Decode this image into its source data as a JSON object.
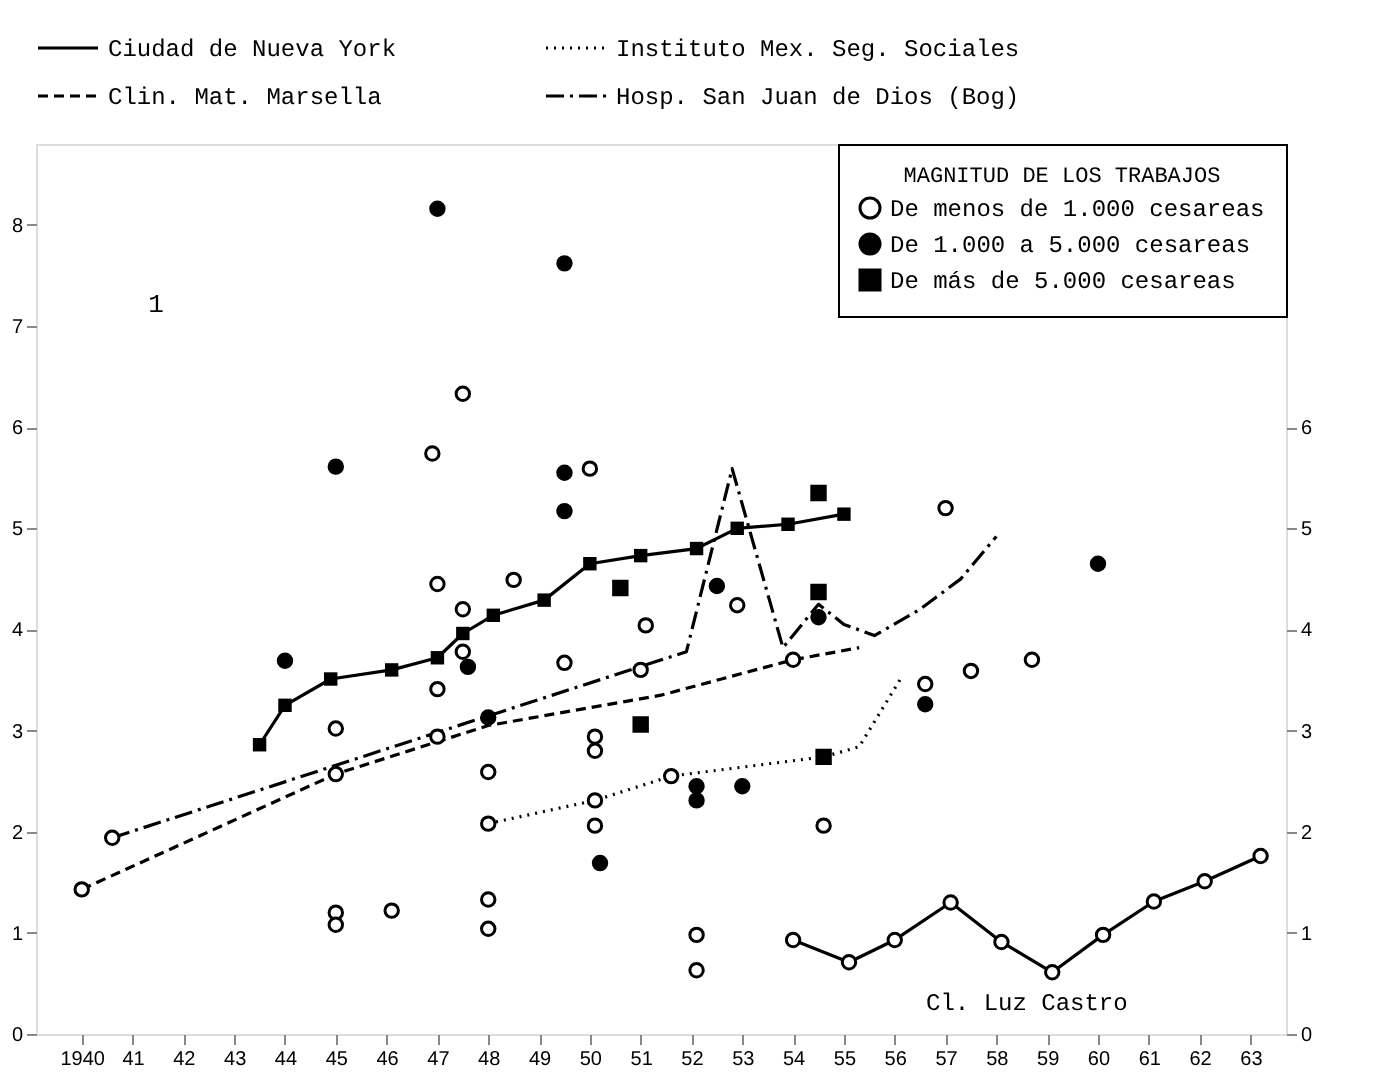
{
  "chart_data": {
    "type": "line",
    "xlim": [
      1939.1,
      1963.7
    ],
    "ylim": [
      0,
      8.8
    ],
    "yticks": [
      0,
      1,
      2,
      3,
      4,
      5,
      6,
      7,
      8
    ],
    "y2lim": [
      0,
      8.8
    ],
    "y2ticks": [
      0,
      1,
      2,
      3,
      4,
      5,
      6
    ],
    "xticks": [
      1940,
      {
        "value": 1941,
        "label": "41"
      },
      {
        "value": 1942,
        "label": "42"
      },
      {
        "value": 1943,
        "label": "43"
      },
      {
        "value": 1944,
        "label": "44"
      },
      {
        "value": 1945,
        "label": "45"
      },
      {
        "value": 1946,
        "label": "46"
      },
      {
        "value": 1947,
        "label": "47"
      },
      {
        "value": 1948,
        "label": "48"
      },
      {
        "value": 1949,
        "label": "49"
      },
      {
        "value": 1950,
        "label": "50"
      },
      {
        "value": 1951,
        "label": "51"
      },
      {
        "value": 1952,
        "label": "52"
      },
      {
        "value": 1953,
        "label": "53"
      },
      {
        "value": 1954,
        "label": "54"
      },
      {
        "value": 1955,
        "label": "55"
      },
      {
        "value": 1956,
        "label": "56"
      },
      {
        "value": 1957,
        "label": "57"
      },
      {
        "value": 1958,
        "label": "58"
      },
      {
        "value": 1959,
        "label": "59"
      },
      {
        "value": 1960,
        "label": "60"
      },
      {
        "value": 1961,
        "label": "61"
      },
      {
        "value": 1962,
        "label": "62"
      },
      {
        "value": 1963,
        "label": "63"
      }
    ],
    "grid": false,
    "legend": "top right",
    "legend_title": "MAGNITUD DE LOS TRABAJOS",
    "annotations": [
      "1",
      "Cl. Luz Castro"
    ],
    "series": [
      {
        "name": "Ciudad de Nueva York",
        "color": "#000000",
        "marker": "square",
        "line_style": "solid",
        "x": [
          1943.5,
          1944.0,
          1944.9,
          1946.1,
          1947.0,
          1947.5,
          1948.1,
          1949.1,
          1950.0,
          1951.0,
          1952.1,
          1952.9,
          1953.9,
          1955.0
        ],
        "values": [
          2.86,
          3.25,
          3.51,
          3.6,
          3.72,
          3.96,
          4.14,
          4.29,
          4.65,
          4.73,
          4.8,
          5.0,
          5.04,
          5.14
        ]
      },
      {
        "name": "Instituto Mex. Seg. Sociales",
        "color": "#000000",
        "marker": "none",
        "line_style": "dotted",
        "x": [
          1948.0,
          1950.1,
          1951.6,
          1954.6,
          1955.3,
          1956.1
        ],
        "values": [
          2.08,
          2.31,
          2.55,
          2.74,
          2.84,
          3.5
        ]
      },
      {
        "name": "Clin. Mat. Marsella",
        "color": "#000000",
        "marker": "none",
        "line_style": "dashed",
        "x": [
          1940.0,
          1945.0,
          1948.0,
          1951.4,
          1954.0,
          1955.3
        ],
        "values": [
          1.43,
          2.57,
          3.05,
          3.35,
          3.7,
          3.82
        ]
      },
      {
        "name": "Hosp. San Juan de Dios (Bog)",
        "color": "#000000",
        "marker": "none",
        "line_style": "dashdot",
        "x": [
          1940.6,
          1951.9,
          1952.8,
          1953.8,
          1954.5,
          1955.0,
          1955.6,
          1956.5,
          1957.3,
          1958.0
        ],
        "values": [
          1.94,
          3.78,
          5.59,
          3.82,
          4.25,
          4.05,
          3.94,
          4.2,
          4.5,
          4.92
        ]
      },
      {
        "color": "#000000",
        "marker": "circle",
        "line_style": "solid",
        "x": [
          1954.0,
          1955.1,
          1956.0,
          1957.1,
          1958.1,
          1959.1,
          1960.1,
          1961.1,
          1962.1,
          1963.2
        ],
        "values": [
          0.93,
          0.71,
          0.93,
          1.3,
          0.91,
          0.61,
          0.98,
          1.31,
          1.51,
          1.76
        ]
      },
      {
        "name": "De menos de 1.000 cesareas",
        "type": "scatter",
        "color": "#ffffff",
        "marker": "circle",
        "x": [
          1940.0,
          1940.6,
          1945.0,
          1945.0,
          1945.0,
          1945.0,
          1946.1,
          1946.9,
          1947.0,
          1947.0,
          1947.0,
          1947.5,
          1947.5,
          1947.5,
          1948.0,
          1948.0,
          1948.0,
          1948.0,
          1948.5,
          1949.5,
          1950.0,
          1950.1,
          1950.1,
          1950.1,
          1950.1,
          1951.0,
          1951.1,
          1951.6,
          1952.1,
          1952.1,
          1952.9,
          1954.0,
          1954.6,
          1956.6,
          1957.0,
          1957.5,
          1958.7
        ],
        "values": [
          1.43,
          1.94,
          3.02,
          2.57,
          1.2,
          1.08,
          1.22,
          5.74,
          4.45,
          3.41,
          2.94,
          6.33,
          4.2,
          3.78,
          2.59,
          2.08,
          1.33,
          1.04,
          4.49,
          3.67,
          5.59,
          2.94,
          2.8,
          2.31,
          2.06,
          3.6,
          4.04,
          2.55,
          0.98,
          0.63,
          4.24,
          3.7,
          2.06,
          3.46,
          5.2,
          3.59,
          3.7
        ]
      },
      {
        "name": "De 1.000 a  5.000 cesareas",
        "type": "scatter",
        "color": "#000000",
        "marker": "circle",
        "x": [
          1944.0,
          1945.0,
          1947.0,
          1947.6,
          1948.0,
          1949.5,
          1949.5,
          1949.5,
          1950.2,
          1952.1,
          1952.1,
          1952.5,
          1953.0,
          1954.5,
          1956.6,
          1960.0
        ],
        "values": [
          3.69,
          5.61,
          8.16,
          3.63,
          3.13,
          7.62,
          5.55,
          5.17,
          1.69,
          2.45,
          2.31,
          4.43,
          2.45,
          4.12,
          3.26,
          4.65
        ]
      },
      {
        "name": "De  más  de 5.000 cesareas",
        "type": "scatter",
        "color": "#000000",
        "marker": "square",
        "x": [
          1950.6,
          1951.0,
          1954.5,
          1954.5,
          1954.6
        ],
        "values": [
          4.41,
          3.06,
          5.35,
          4.37,
          2.74
        ]
      }
    ]
  }
}
